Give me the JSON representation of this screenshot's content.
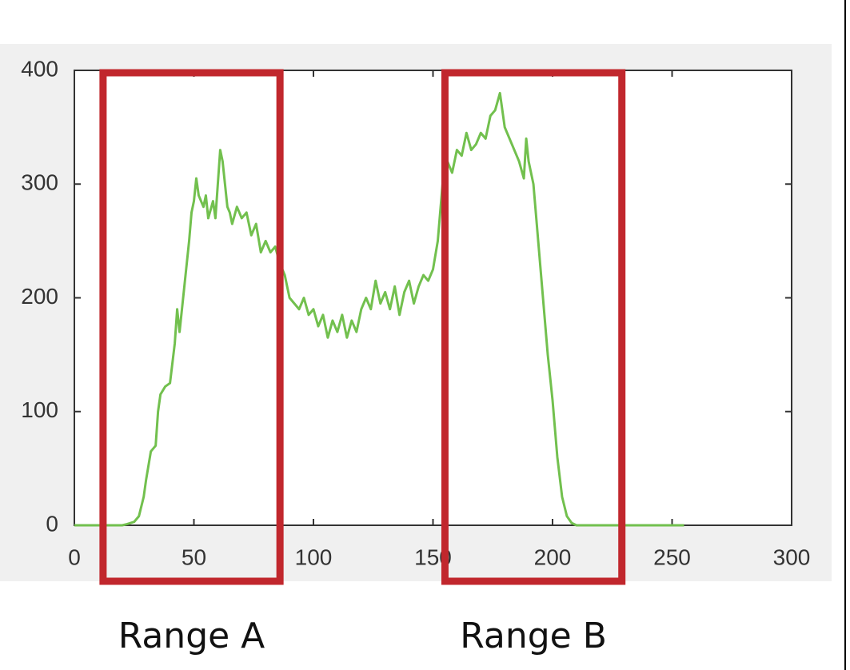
{
  "chart_data": {
    "type": "line",
    "x": [
      0,
      20,
      22,
      25,
      27,
      29,
      30,
      32,
      34,
      35,
      36,
      38,
      40,
      42,
      43,
      44,
      46,
      48,
      49,
      50,
      51,
      52,
      54,
      55,
      56,
      58,
      59,
      60,
      61,
      62,
      63,
      64,
      65,
      66,
      68,
      70,
      72,
      74,
      76,
      78,
      80,
      82,
      84,
      86,
      88,
      90,
      92,
      94,
      96,
      98,
      100,
      102,
      104,
      106,
      108,
      110,
      112,
      114,
      116,
      118,
      120,
      122,
      124,
      126,
      128,
      130,
      132,
      134,
      136,
      138,
      140,
      142,
      144,
      146,
      148,
      150,
      152,
      154,
      156,
      158,
      160,
      162,
      164,
      166,
      168,
      170,
      172,
      174,
      176,
      178,
      180,
      182,
      184,
      186,
      188,
      189,
      190,
      192,
      194,
      196,
      198,
      200,
      202,
      204,
      206,
      208,
      210,
      255
    ],
    "values": [
      0,
      0,
      1,
      3,
      8,
      25,
      40,
      65,
      70,
      100,
      115,
      122,
      125,
      160,
      190,
      170,
      210,
      250,
      275,
      285,
      305,
      290,
      280,
      290,
      270,
      285,
      270,
      300,
      330,
      320,
      300,
      280,
      275,
      265,
      280,
      270,
      275,
      255,
      265,
      240,
      250,
      240,
      245,
      230,
      220,
      200,
      195,
      190,
      200,
      185,
      190,
      175,
      185,
      165,
      180,
      170,
      185,
      165,
      180,
      170,
      190,
      200,
      190,
      215,
      195,
      205,
      190,
      210,
      185,
      205,
      215,
      195,
      210,
      220,
      215,
      225,
      250,
      300,
      320,
      310,
      330,
      325,
      345,
      330,
      335,
      345,
      340,
      360,
      365,
      380,
      350,
      340,
      330,
      320,
      305,
      340,
      320,
      300,
      250,
      200,
      150,
      110,
      60,
      25,
      8,
      2,
      0,
      0
    ],
    "color": "#72c04e",
    "xlim": [
      0,
      300
    ],
    "xticks": [
      0,
      50,
      100,
      150,
      200,
      250,
      300
    ],
    "ylim": [
      0,
      400
    ],
    "yticks": [
      0,
      100,
      200,
      300,
      400
    ],
    "annotations": [
      {
        "text": "Range A",
        "x": [
          12,
          86
        ],
        "color": "#c1272d"
      },
      {
        "text": "Range B",
        "x": [
          155,
          229
        ],
        "color": "#c1272d"
      }
    ]
  }
}
